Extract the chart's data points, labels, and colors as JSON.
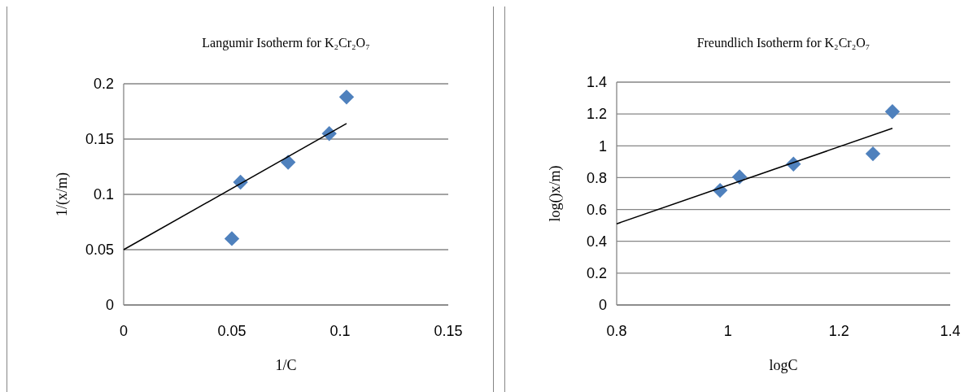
{
  "chart_data": [
    {
      "type": "scatter",
      "title": "Langumir Isotherm for K₂Cr₂O₇",
      "xlabel": "1/C",
      "ylabel": "1/(x/m)",
      "marker": "diamond",
      "grid": "y",
      "xlim": [
        0,
        0.15
      ],
      "xticks": [
        0,
        0.05,
        0.1,
        0.15
      ],
      "ylim": [
        0,
        0.2
      ],
      "yticks": [
        0,
        0.05,
        0.1,
        0.15,
        0.2
      ],
      "series": [
        {
          "color": "#4f81bd",
          "x": [
            0.05,
            0.054,
            0.076,
            0.095,
            0.103
          ],
          "values": [
            0.06,
            0.111,
            0.129,
            0.155,
            0.188
          ]
        },
        {
          "type": "line",
          "color": "#000000",
          "marker": "none",
          "x": [
            0,
            0.103
          ],
          "values": [
            0.05,
            0.164
          ]
        }
      ]
    },
    {
      "type": "scatter",
      "title": "Freundlich Isotherm for K₂Cr₂O₇",
      "xlabel": "logC",
      "ylabel": "log()x/m)",
      "marker": "diamond",
      "grid": "y",
      "xlim": [
        0.8,
        1.4
      ],
      "xticks": [
        0.8,
        1,
        1.2,
        1.4
      ],
      "ylim": [
        0,
        1.4
      ],
      "yticks": [
        0,
        0.2,
        0.4,
        0.6,
        0.8,
        1,
        1.2,
        1.4
      ],
      "series": [
        {
          "color": "#4f81bd",
          "x": [
            0.986,
            1.021,
            1.118,
            1.261,
            1.296
          ],
          "values": [
            0.72,
            0.805,
            0.885,
            0.95,
            1.215
          ]
        },
        {
          "type": "line",
          "color": "#000000",
          "marker": "none",
          "x": [
            0.8,
            1.296
          ],
          "values": [
            0.51,
            1.11
          ]
        }
      ]
    }
  ]
}
